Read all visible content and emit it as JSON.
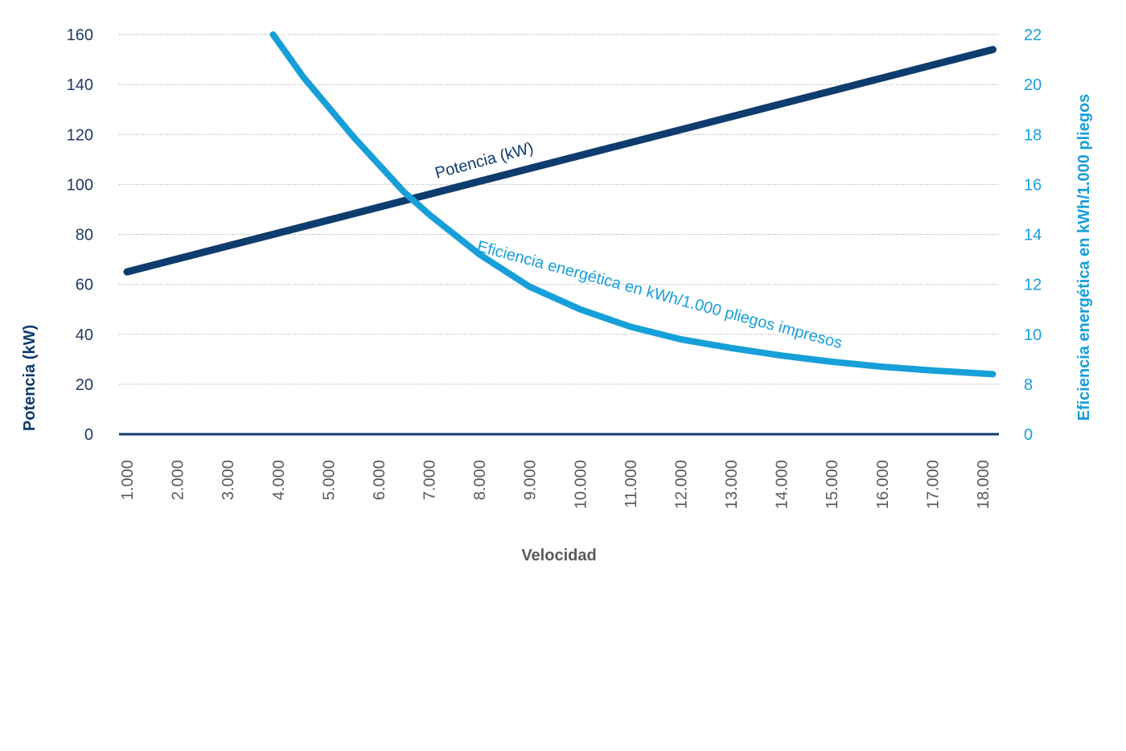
{
  "chart_data": {
    "type": "line",
    "xlabel": "Velocidad",
    "ylabel_left": "Potencia (kW)",
    "ylabel_right": "Eficiencia energética en kWh/1.000 pliegos",
    "x_ticks": [
      "1.000",
      "2.000",
      "3.000",
      "4.000",
      "5.000",
      "6.000",
      "7.000",
      "8.000",
      "9.000",
      "10.000",
      "11.000",
      "12.000",
      "13.000",
      "14.000",
      "15.000",
      "16.000",
      "17.000",
      "18.000"
    ],
    "y_left_ticks": [
      "0",
      "20",
      "40",
      "60",
      "80",
      "100",
      "120",
      "140",
      "160"
    ],
    "y_right_ticks": [
      "0",
      "8",
      "10",
      "12",
      "14",
      "16",
      "18",
      "20",
      "22"
    ],
    "xlim": [
      1000,
      18000
    ],
    "ylim_left": [
      0,
      160
    ],
    "ylim_right_ticks_values": [
      0,
      8,
      10,
      12,
      14,
      16,
      18,
      20,
      22
    ],
    "grid": true,
    "series": [
      {
        "name": "Potencia (kW)",
        "axis": "left",
        "color": "#0f3c6e",
        "x": [
          1000,
          18200
        ],
        "y": [
          65,
          154
        ]
      },
      {
        "name": "Eficiencia energética en kWh/1.000 pliegos impresos",
        "axis": "right",
        "color": "#179fd8",
        "x": [
          3900,
          4500,
          5000,
          5500,
          6000,
          6500,
          7000,
          7500,
          8000,
          9000,
          10000,
          11000,
          12000,
          13000,
          14000,
          15000,
          16000,
          17000,
          18200
        ],
        "y": [
          22.0,
          20.3,
          19.1,
          17.9,
          16.8,
          15.7,
          14.8,
          14.0,
          13.2,
          11.9,
          11.0,
          10.3,
          9.8,
          9.45,
          9.15,
          8.9,
          8.7,
          8.55,
          8.4
        ]
      }
    ]
  }
}
